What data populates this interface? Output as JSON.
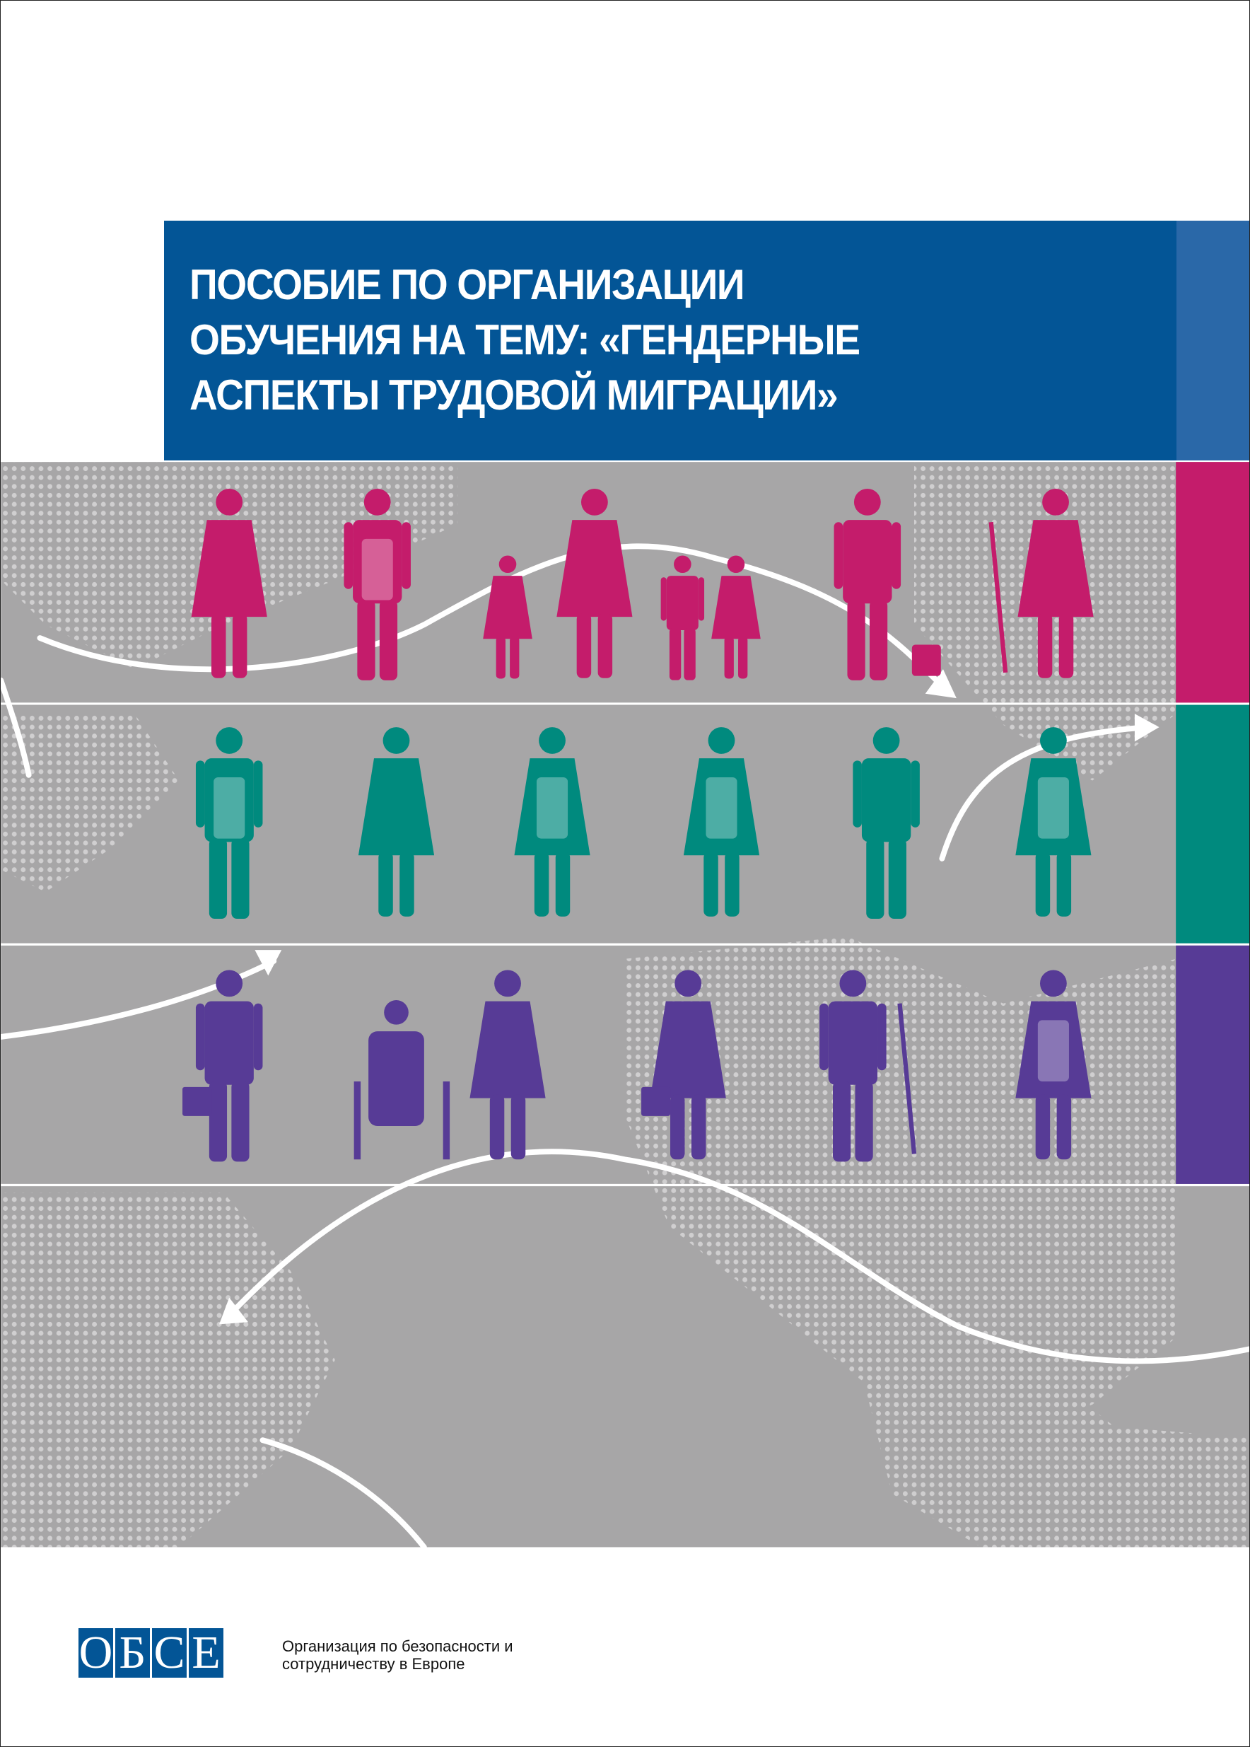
{
  "title": "ПОСОБИЕ ПО ОРГАНИЗАЦИИ\nОБУЧЕНИЯ НА ТЕМУ: «ГЕНДЕРНЫЕ\nАСПЕКТЫ ТРУДОВОЙ МИГРАЦИИ»",
  "logo": {
    "letters": [
      "О",
      "Б",
      "С",
      "Е"
    ],
    "line1": "Организация по безопасности и",
    "line2": "сотрудничеству в Европе"
  },
  "colors": {
    "banner": "#035596",
    "banner_strip": "#2a68a8",
    "pink": "#c41c6b",
    "teal": "#008a7e",
    "purple": "#573b96",
    "map_gray": "#a7a6a7"
  },
  "rows": [
    {
      "color": "#c41c6b",
      "figures": [
        "woman-doctor-icon",
        "man-apron-icon",
        "girl-icon",
        "woman-icon",
        "boy-icon",
        "girl-icon",
        "man-watering-can-icon",
        "woman-broom-icon"
      ]
    },
    {
      "color": "#008a7e",
      "figures": [
        "man-apron-icon",
        "woman-doctor-icon",
        "woman-apron-icon",
        "woman-apron-icon",
        "man-doctor-icon",
        "nurse-icon"
      ]
    },
    {
      "color": "#573b96",
      "figures": [
        "man-briefcase-icon",
        "wheelchair-user-icon",
        "woman-caregiver-icon",
        "woman-briefcase-icon",
        "man-shovel-icon",
        "woman-apron-icon"
      ]
    }
  ]
}
